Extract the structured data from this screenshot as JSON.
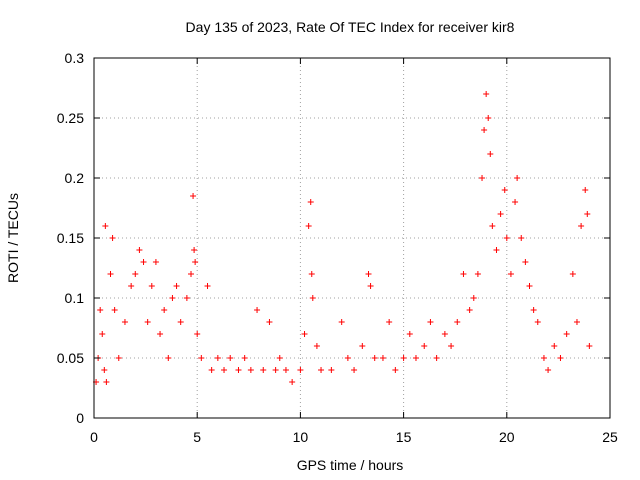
{
  "chart_data": {
    "type": "scatter",
    "title": "Day 135 of 2023, Rate Of TEC Index for receiver kir8",
    "xlabel": "GPS time / hours",
    "ylabel": "ROTI / TECUs",
    "xlim": [
      0,
      25
    ],
    "ylim": [
      0,
      0.3
    ],
    "x_ticks": [
      0,
      5,
      10,
      15,
      20,
      25
    ],
    "x_tick_labels": [
      "0",
      "5",
      "10",
      "15",
      "20",
      "25"
    ],
    "y_ticks": [
      0,
      0.05,
      0.1,
      0.15,
      0.2,
      0.25,
      0.3
    ],
    "y_tick_labels": [
      "0",
      "0.05",
      "0.1",
      "0.15",
      "0.2",
      "0.25",
      "0.3"
    ],
    "grid": true,
    "marker": "+",
    "marker_color": "#ff0000",
    "series": [
      {
        "points": [
          [
            0.1,
            0.03
          ],
          [
            0.2,
            0.05
          ],
          [
            0.3,
            0.09
          ],
          [
            0.4,
            0.07
          ],
          [
            0.5,
            0.04
          ],
          [
            0.55,
            0.16
          ],
          [
            0.6,
            0.03
          ],
          [
            0.8,
            0.12
          ],
          [
            0.9,
            0.15
          ],
          [
            1.0,
            0.09
          ],
          [
            1.2,
            0.05
          ],
          [
            1.5,
            0.08
          ],
          [
            1.8,
            0.11
          ],
          [
            2.0,
            0.12
          ],
          [
            2.2,
            0.14
          ],
          [
            2.4,
            0.13
          ],
          [
            2.6,
            0.08
          ],
          [
            2.8,
            0.11
          ],
          [
            3.0,
            0.13
          ],
          [
            3.2,
            0.07
          ],
          [
            3.4,
            0.09
          ],
          [
            3.6,
            0.05
          ],
          [
            3.8,
            0.1
          ],
          [
            4.0,
            0.11
          ],
          [
            4.2,
            0.08
          ],
          [
            4.5,
            0.1
          ],
          [
            4.7,
            0.12
          ],
          [
            4.8,
            0.185
          ],
          [
            4.85,
            0.14
          ],
          [
            4.9,
            0.13
          ],
          [
            5.0,
            0.07
          ],
          [
            5.2,
            0.05
          ],
          [
            5.5,
            0.11
          ],
          [
            5.7,
            0.04
          ],
          [
            6.0,
            0.05
          ],
          [
            6.3,
            0.04
          ],
          [
            6.6,
            0.05
          ],
          [
            7.0,
            0.04
          ],
          [
            7.3,
            0.05
          ],
          [
            7.6,
            0.04
          ],
          [
            7.9,
            0.09
          ],
          [
            8.2,
            0.04
          ],
          [
            8.5,
            0.08
          ],
          [
            8.8,
            0.04
          ],
          [
            9.0,
            0.05
          ],
          [
            9.3,
            0.04
          ],
          [
            9.6,
            0.03
          ],
          [
            10.0,
            0.04
          ],
          [
            10.2,
            0.07
          ],
          [
            10.4,
            0.16
          ],
          [
            10.5,
            0.18
          ],
          [
            10.55,
            0.12
          ],
          [
            10.6,
            0.1
          ],
          [
            10.8,
            0.06
          ],
          [
            11.0,
            0.04
          ],
          [
            11.5,
            0.04
          ],
          [
            12.0,
            0.08
          ],
          [
            12.3,
            0.05
          ],
          [
            12.6,
            0.04
          ],
          [
            13.0,
            0.06
          ],
          [
            13.3,
            0.12
          ],
          [
            13.4,
            0.11
          ],
          [
            13.6,
            0.05
          ],
          [
            14.0,
            0.05
          ],
          [
            14.3,
            0.08
          ],
          [
            14.6,
            0.04
          ],
          [
            15.0,
            0.05
          ],
          [
            15.3,
            0.07
          ],
          [
            15.6,
            0.05
          ],
          [
            16.0,
            0.06
          ],
          [
            16.3,
            0.08
          ],
          [
            16.6,
            0.05
          ],
          [
            17.0,
            0.07
          ],
          [
            17.3,
            0.06
          ],
          [
            17.6,
            0.08
          ],
          [
            17.9,
            0.12
          ],
          [
            18.2,
            0.09
          ],
          [
            18.4,
            0.1
          ],
          [
            18.6,
            0.12
          ],
          [
            18.8,
            0.2
          ],
          [
            18.9,
            0.24
          ],
          [
            19.0,
            0.27
          ],
          [
            19.1,
            0.25
          ],
          [
            19.2,
            0.22
          ],
          [
            19.3,
            0.16
          ],
          [
            19.5,
            0.14
          ],
          [
            19.7,
            0.17
          ],
          [
            19.9,
            0.19
          ],
          [
            20.0,
            0.15
          ],
          [
            20.2,
            0.12
          ],
          [
            20.4,
            0.18
          ],
          [
            20.5,
            0.2
          ],
          [
            20.7,
            0.15
          ],
          [
            20.9,
            0.13
          ],
          [
            21.1,
            0.11
          ],
          [
            21.3,
            0.09
          ],
          [
            21.5,
            0.08
          ],
          [
            21.8,
            0.05
          ],
          [
            22.0,
            0.04
          ],
          [
            22.3,
            0.06
          ],
          [
            22.6,
            0.05
          ],
          [
            22.9,
            0.07
          ],
          [
            23.2,
            0.12
          ],
          [
            23.4,
            0.08
          ],
          [
            23.6,
            0.16
          ],
          [
            23.8,
            0.19
          ],
          [
            23.9,
            0.17
          ],
          [
            24.0,
            0.06
          ]
        ]
      }
    ]
  }
}
